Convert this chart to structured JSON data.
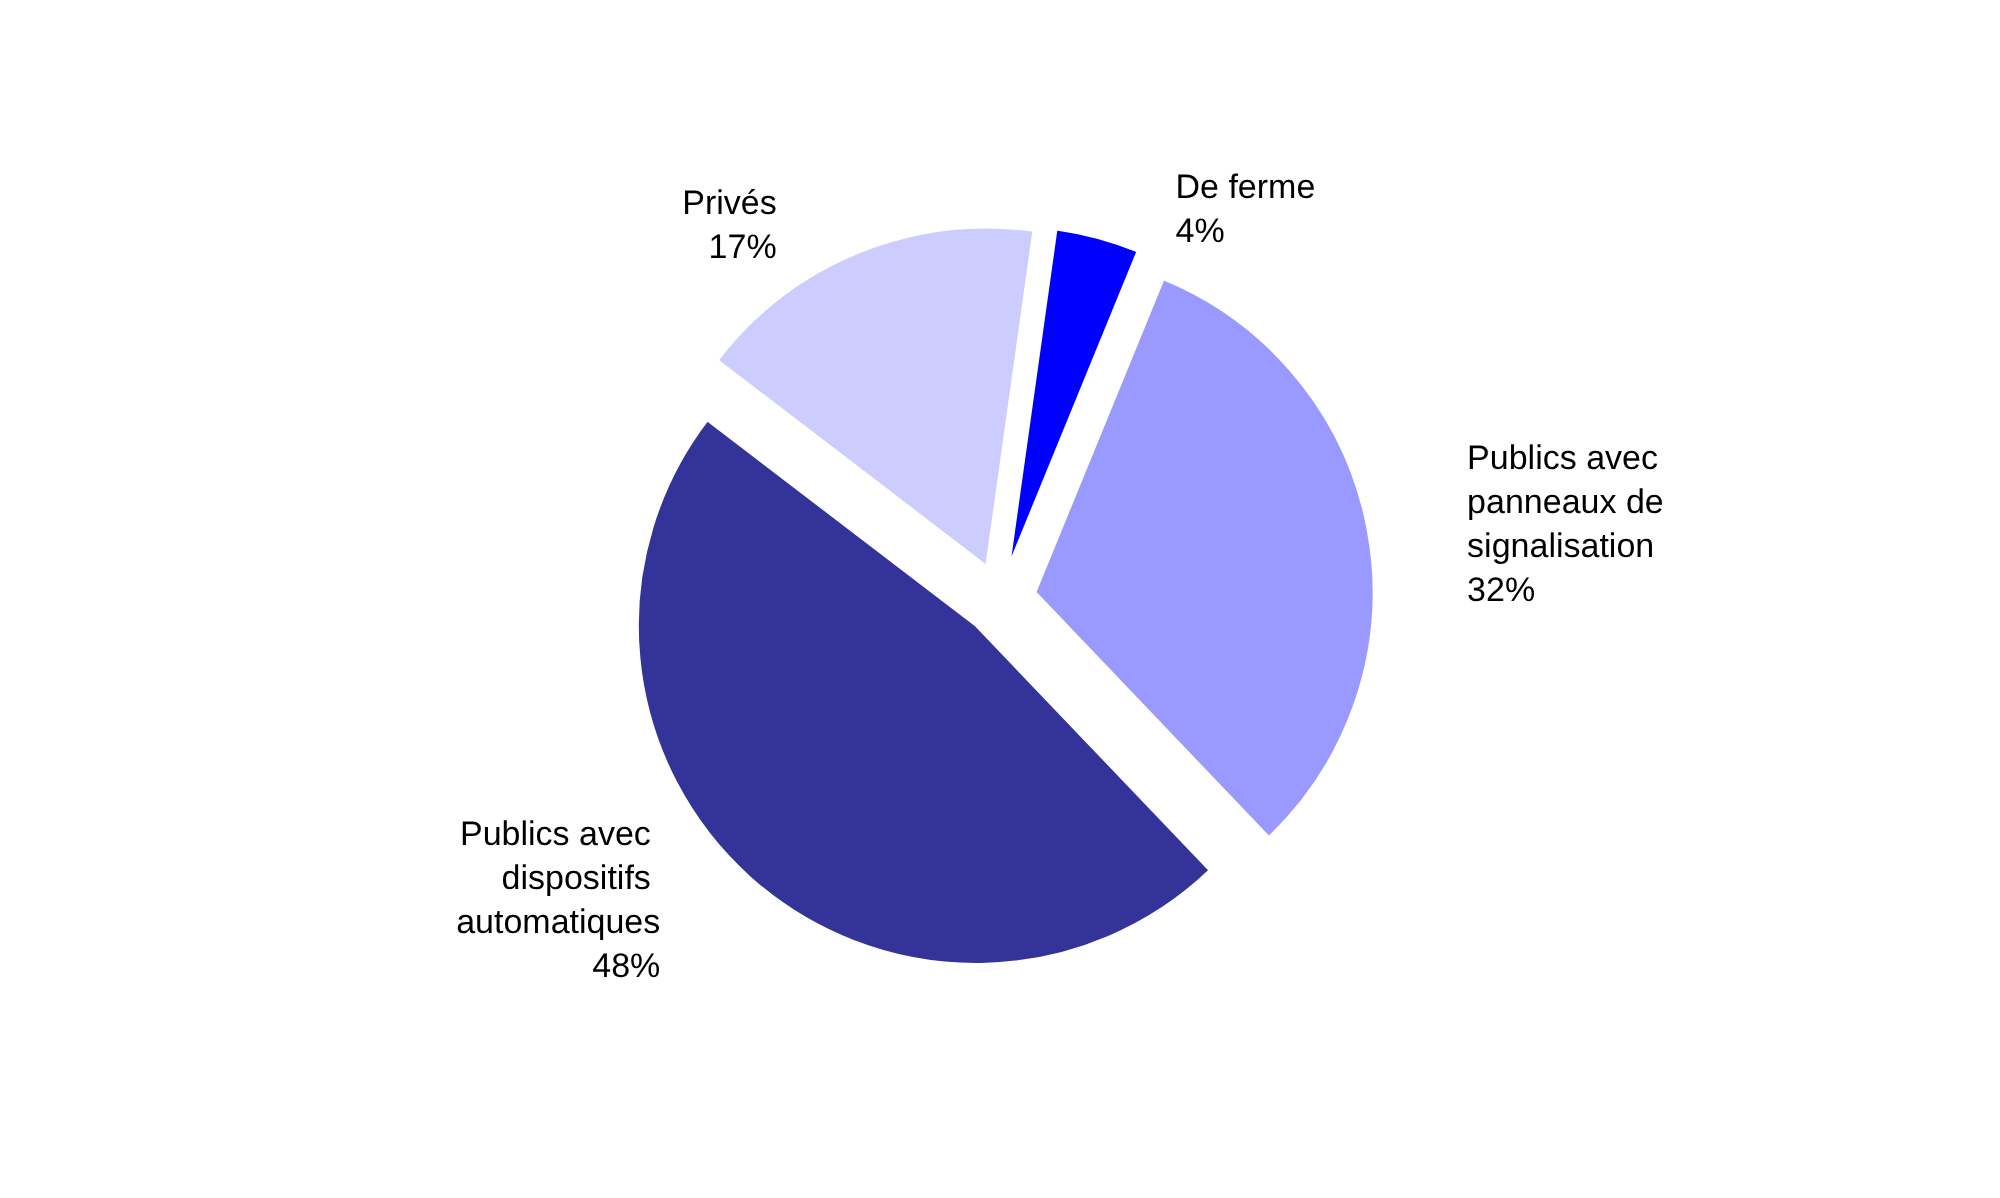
{
  "chart_data": {
    "type": "pie",
    "categories": [
      "De ferme",
      "Publics avec panneaux de signalisation",
      "Publics avec dispositifs automatiques",
      "Privés"
    ],
    "values": [
      4,
      32,
      48,
      17
    ],
    "colors": [
      "#0000ff",
      "#9999ff",
      "#333399",
      "#ccccff"
    ],
    "value_labels": [
      "4%",
      "32%",
      "48%",
      "17%"
    ],
    "legend": false
  }
}
